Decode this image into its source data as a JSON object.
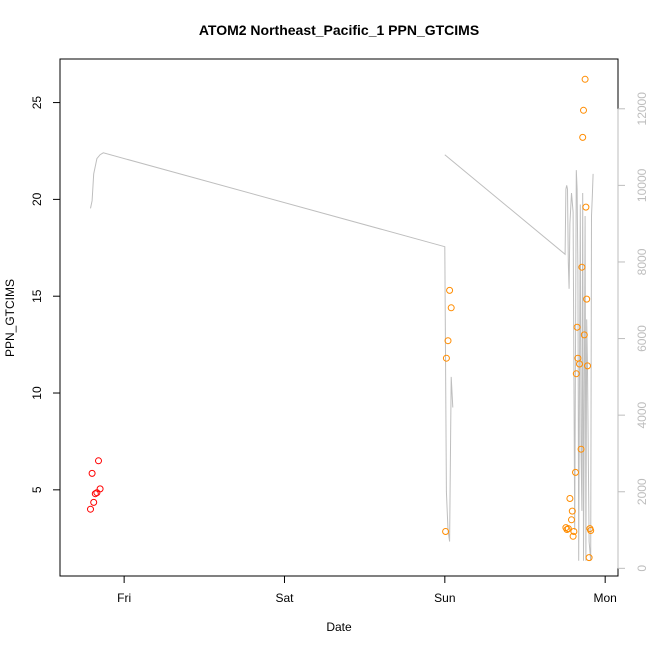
{
  "chart_data": {
    "type": "scatter",
    "title": "ATOM2 Northeast_Pacific_1 PPN_GTCIMS",
    "xlabel": "Date",
    "ylabel": "PPN_GTCIMS",
    "y2label": "",
    "x_ticks": [
      {
        "label": "Fri",
        "day": 1
      },
      {
        "label": "Sat",
        "day": 2
      },
      {
        "label": "Sun",
        "day": 3
      },
      {
        "label": "Mon",
        "day": 4
      }
    ],
    "y_ticks": [
      5,
      10,
      15,
      20,
      25
    ],
    "y2_ticks": [
      0,
      2000,
      4000,
      6000,
      8000,
      10000,
      12000
    ],
    "xlim": [
      0.6,
      4.08
    ],
    "ylim": [
      0.55,
      27.25
    ],
    "y2lim": [
      -200,
      13300
    ],
    "colors": {
      "series_early": "#ff0000",
      "series_late": "#ff8c00",
      "secondary_line": "#bebebe",
      "axis": "#000000",
      "right_axis": "#bdbdbd"
    },
    "series": [
      {
        "color": "#ff0000",
        "points": [
          [
            0.79,
            4.0
          ],
          [
            0.8,
            5.85
          ],
          [
            0.81,
            4.35
          ],
          [
            0.82,
            4.8
          ],
          [
            0.83,
            4.85
          ],
          [
            0.84,
            6.5
          ],
          [
            0.85,
            5.05
          ]
        ]
      },
      {
        "color": "#ff8c00",
        "points": [
          [
            3.005,
            2.85
          ],
          [
            3.01,
            11.8
          ],
          [
            3.02,
            12.7
          ],
          [
            3.03,
            15.3
          ],
          [
            3.04,
            14.4
          ],
          [
            3.755,
            3.05
          ],
          [
            3.762,
            2.95
          ],
          [
            3.77,
            3.0
          ],
          [
            3.78,
            4.55
          ],
          [
            3.79,
            3.45
          ],
          [
            3.795,
            3.9
          ],
          [
            3.8,
            2.6
          ],
          [
            3.805,
            2.85
          ],
          [
            3.815,
            5.9
          ],
          [
            3.82,
            11.0
          ],
          [
            3.825,
            13.4
          ],
          [
            3.83,
            11.8
          ],
          [
            3.84,
            11.5
          ],
          [
            3.85,
            7.1
          ],
          [
            3.855,
            16.5
          ],
          [
            3.86,
            23.2
          ],
          [
            3.865,
            24.6
          ],
          [
            3.87,
            13.0
          ],
          [
            3.875,
            26.2
          ],
          [
            3.88,
            19.6
          ],
          [
            3.885,
            14.85
          ],
          [
            3.89,
            11.4
          ],
          [
            3.9,
            1.5
          ],
          [
            3.905,
            3.0
          ],
          [
            3.91,
            2.9
          ]
        ]
      }
    ],
    "secondary_line": {
      "segments": [
        [
          [
            0.79,
            9400
          ],
          [
            0.8,
            9600
          ],
          [
            0.81,
            10300
          ],
          [
            0.83,
            10700
          ],
          [
            0.85,
            10800
          ],
          [
            0.87,
            10850
          ],
          [
            3.0,
            8400
          ],
          [
            3.01,
            2000
          ],
          [
            3.02,
            1000
          ],
          [
            3.03,
            700
          ],
          [
            3.04,
            5000
          ],
          [
            3.05,
            4200
          ]
        ],
        [
          [
            3.0,
            10800
          ],
          [
            3.75,
            8200
          ],
          [
            3.755,
            9900
          ],
          [
            3.76,
            10000
          ],
          [
            3.765,
            9900
          ],
          [
            3.77,
            8000
          ],
          [
            3.775,
            7300
          ],
          [
            3.78,
            9000
          ],
          [
            3.79,
            9800
          ],
          [
            3.8,
            9300
          ],
          [
            3.81,
            1000
          ],
          [
            3.82,
            10400
          ],
          [
            3.825,
            9900
          ],
          [
            3.83,
            7800
          ],
          [
            3.835,
            200
          ],
          [
            3.84,
            5000
          ],
          [
            3.845,
            9500
          ],
          [
            3.85,
            3000
          ],
          [
            3.855,
            1500
          ],
          [
            3.86,
            9800
          ],
          [
            3.865,
            200
          ],
          [
            3.87,
            4500
          ],
          [
            3.875,
            9200
          ],
          [
            3.88,
            200
          ],
          [
            3.885,
            6500
          ],
          [
            3.89,
            5200
          ],
          [
            3.9,
            700
          ],
          [
            3.91,
            200
          ],
          [
            3.915,
            9200
          ],
          [
            3.92,
            9700
          ],
          [
            3.925,
            10300
          ]
        ]
      ]
    }
  }
}
